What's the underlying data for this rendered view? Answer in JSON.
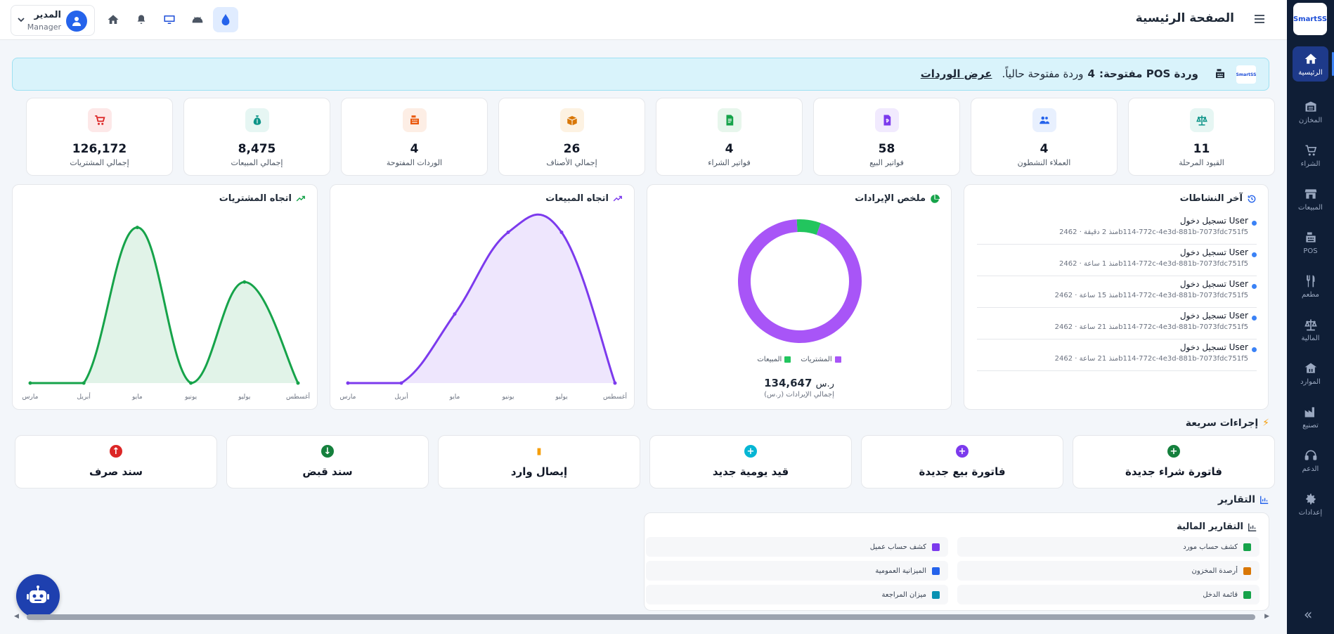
{
  "sidebar": {
    "logo": "SmartSS",
    "items": [
      {
        "label": "الرئيسية",
        "icon": "home-icon"
      },
      {
        "label": "المخازن",
        "icon": "warehouse-icon"
      },
      {
        "label": "الشراء",
        "icon": "cart-icon"
      },
      {
        "label": "المبيعات",
        "icon": "store-icon"
      },
      {
        "label": "POS",
        "icon": "cash-register-icon"
      },
      {
        "label": "مطعم",
        "icon": "restaurant-icon"
      },
      {
        "label": "المالية",
        "icon": "scale-icon"
      },
      {
        "label": "الموارد",
        "icon": "people-icon"
      },
      {
        "label": "تصنيع",
        "icon": "factory-icon"
      },
      {
        "label": "الدعم",
        "icon": "headset-icon"
      },
      {
        "label": "إعدادات",
        "icon": "gear-icon"
      }
    ],
    "collapse": "«"
  },
  "header": {
    "title": "الصفحة الرئيسية",
    "user_name": "المدير",
    "user_role": "Manager"
  },
  "banner": {
    "prefix": "وردة POS مفتوحة:",
    "count": "4",
    "suffix": "وردة مفتوحة حالياً.",
    "link": "عرض الوردات"
  },
  "stats": [
    {
      "value": "11",
      "label": "القيود المرحلة",
      "color": "#0d9488",
      "bg": "#e6f6f3"
    },
    {
      "value": "4",
      "label": "العملاء النشطون",
      "color": "#2563eb",
      "bg": "#e8f0fe"
    },
    {
      "value": "58",
      "label": "فواتير البيع",
      "color": "#7c3aed",
      "bg": "#f1eafe"
    },
    {
      "value": "4",
      "label": "فواتير الشراء",
      "color": "#16a34a",
      "bg": "#e7f6ec"
    },
    {
      "value": "26",
      "label": "إجمالي الأصناف",
      "color": "#d97706",
      "bg": "#fdf2e2"
    },
    {
      "value": "4",
      "label": "الوردات المفتوحة",
      "color": "#ea580c",
      "bg": "#fdeee5"
    },
    {
      "value": "8,475",
      "label": "إجمالي المبيعات",
      "color": "#0d9488",
      "bg": "#e6f6f3"
    },
    {
      "value": "126,172",
      "label": "إجمالي المشتريات",
      "color": "#dc2626",
      "bg": "#fde8e8"
    }
  ],
  "activity": {
    "title": "آخر النشاطات",
    "items": [
      {
        "title": "تسجيل دخول User",
        "sub": "منذ 2 دقيقة · 2462b114-772c-4e3d-881b-7073fdc751f5"
      },
      {
        "title": "تسجيل دخول User",
        "sub": "منذ 1 ساعة · 2462b114-772c-4e3d-881b-7073fdc751f5"
      },
      {
        "title": "تسجيل دخول User",
        "sub": "منذ 15 ساعة · 2462b114-772c-4e3d-881b-7073fdc751f5"
      },
      {
        "title": "تسجيل دخول User",
        "sub": "منذ 21 ساعة · 2462b114-772c-4e3d-881b-7073fdc751f5"
      },
      {
        "title": "تسجيل دخول User",
        "sub": "منذ 21 ساعة · 2462b114-772c-4e3d-881b-7073fdc751f5"
      }
    ]
  },
  "revenue": {
    "title": "ملخص الإيرادات",
    "legend": [
      "المشتريات",
      "المبيعات"
    ],
    "total": "134,647",
    "currency": "ر.س",
    "total_label": "(إجمالي الإيرادات (ر.س"
  },
  "chart_data": [
    {
      "type": "pie",
      "title": "ملخص الإيرادات",
      "categories": [
        "المشتريات",
        "المبيعات"
      ],
      "values": [
        126172,
        8475
      ],
      "colors": [
        "#a855f7",
        "#22c55e"
      ]
    },
    {
      "type": "area",
      "title": "اتجاه المبيعات",
      "categories": [
        "مارس",
        "أبريل",
        "مايو",
        "يونيو",
        "يوليو",
        "أغسطس"
      ],
      "values": [
        0,
        0,
        1580,
        3450,
        3450,
        0
      ],
      "ylim": [
        0,
        3700
      ],
      "color": "#7c3aed"
    },
    {
      "type": "area",
      "title": "اتجاه المشتريات",
      "categories": [
        "مارس",
        "أبريل",
        "مايو",
        "يونيو",
        "يوليو",
        "أغسطس"
      ],
      "values": [
        0,
        0,
        77000,
        0,
        50000,
        0
      ],
      "ylim": [
        0,
        80000
      ],
      "color": "#16a34a"
    }
  ],
  "quick_actions": {
    "title": "إجراءات سريعة",
    "items": [
      {
        "label": "فاتورة شراء جديدة",
        "color": "#15803d",
        "glyph": "+"
      },
      {
        "label": "فاتورة بيع جديدة",
        "color": "#7c3aed",
        "glyph": "+"
      },
      {
        "label": "قيد يومية جديد",
        "color": "#06b6d4",
        "glyph": "+"
      },
      {
        "label": "إيصال وارد",
        "color": "#f59e0b",
        "glyph": "▮"
      },
      {
        "label": "سند قبض",
        "color": "#15803d",
        "glyph": "↓"
      },
      {
        "label": "سند صرف",
        "color": "#dc2626",
        "glyph": "↑"
      }
    ]
  },
  "reports": {
    "title": "التقارير",
    "panel_title": "التقارير المالية",
    "items": [
      {
        "label": "كشف حساب مورد",
        "color": "#16a34a"
      },
      {
        "label": "كشف حساب عميل",
        "color": "#7c3aed"
      },
      {
        "label": "أرصدة المخزون",
        "color": "#d97706"
      },
      {
        "label": "الميزانية العمومية",
        "color": "#2563eb"
      },
      {
        "label": "قائمة الدخل",
        "color": "#16a34a"
      },
      {
        "label": "ميزان المراجعة",
        "color": "#0891b2"
      }
    ]
  }
}
